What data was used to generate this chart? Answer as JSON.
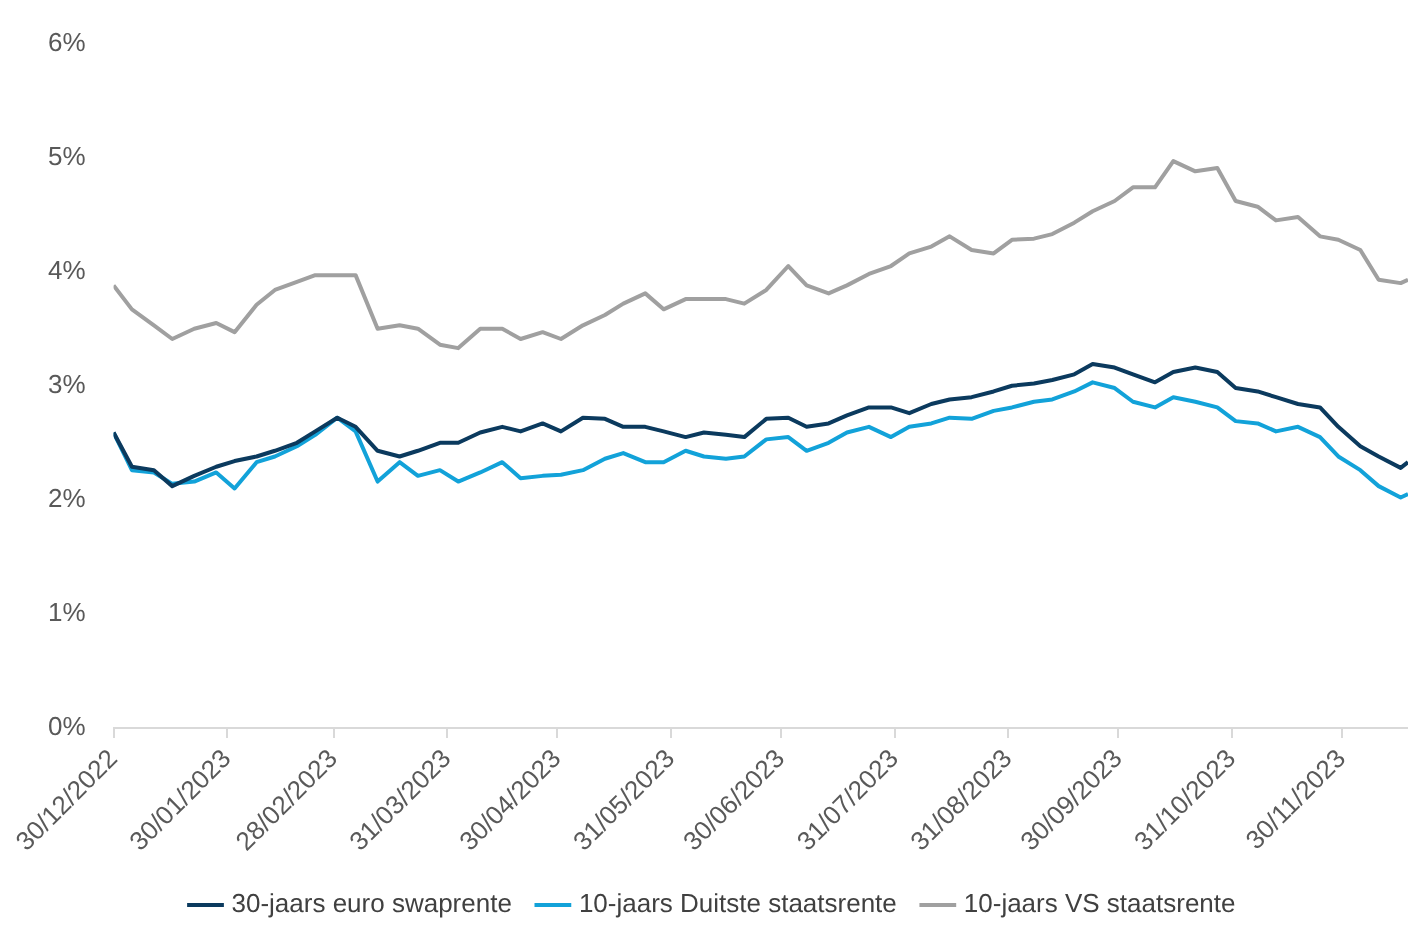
{
  "chart_data": {
    "type": "line",
    "x": [
      "2022-12-30",
      "2023-01-04",
      "2023-01-10",
      "2023-01-15",
      "2023-01-21",
      "2023-01-27",
      "2023-02-01",
      "2023-02-07",
      "2023-02-12",
      "2023-02-18",
      "2023-02-23",
      "2023-03-01",
      "2023-03-06",
      "2023-03-12",
      "2023-03-18",
      "2023-03-23",
      "2023-03-29",
      "2023-04-03",
      "2023-04-09",
      "2023-04-15",
      "2023-04-20",
      "2023-04-26",
      "2023-05-01",
      "2023-05-07",
      "2023-05-13",
      "2023-05-18",
      "2023-05-24",
      "2023-05-29",
      "2023-06-04",
      "2023-06-09",
      "2023-06-15",
      "2023-06-20",
      "2023-06-26",
      "2023-07-02",
      "2023-07-07",
      "2023-07-13",
      "2023-07-18",
      "2023-07-24",
      "2023-07-30",
      "2023-08-04",
      "2023-08-10",
      "2023-08-15",
      "2023-08-21",
      "2023-08-27",
      "2023-09-01",
      "2023-09-07",
      "2023-09-12",
      "2023-09-18",
      "2023-09-23",
      "2023-09-29",
      "2023-10-04",
      "2023-10-10",
      "2023-10-15",
      "2023-10-21",
      "2023-10-27",
      "2023-11-01",
      "2023-11-07",
      "2023-11-12",
      "2023-11-18",
      "2023-11-24",
      "2023-11-29",
      "2023-12-05",
      "2023-12-10",
      "2023-12-16",
      "2023-12-18"
    ],
    "series": [
      {
        "name": "30-jaars euro swaprente",
        "color": "#0b3a5e",
        "values": [
          2.59,
          2.29,
          2.26,
          2.12,
          2.21,
          2.29,
          2.34,
          2.38,
          2.43,
          2.5,
          2.6,
          2.72,
          2.64,
          2.43,
          2.38,
          2.43,
          2.5,
          2.5,
          2.59,
          2.64,
          2.6,
          2.67,
          2.6,
          2.72,
          2.71,
          2.64,
          2.64,
          2.6,
          2.55,
          2.59,
          2.57,
          2.55,
          2.71,
          2.72,
          2.64,
          2.67,
          2.74,
          2.81,
          2.81,
          2.76,
          2.84,
          2.88,
          2.9,
          2.95,
          3.0,
          3.02,
          3.05,
          3.1,
          3.19,
          3.16,
          3.1,
          3.03,
          3.12,
          3.16,
          3.12,
          2.98,
          2.95,
          2.9,
          2.84,
          2.81,
          2.64,
          2.47,
          2.38,
          2.28,
          2.33
        ]
      },
      {
        "name": "10-jaars Duitste staatsrente",
        "color": "#12a2d9",
        "values": [
          2.59,
          2.26,
          2.24,
          2.14,
          2.16,
          2.24,
          2.1,
          2.33,
          2.38,
          2.47,
          2.57,
          2.72,
          2.6,
          2.16,
          2.33,
          2.21,
          2.26,
          2.16,
          2.24,
          2.33,
          2.19,
          2.21,
          2.22,
          2.26,
          2.36,
          2.41,
          2.33,
          2.33,
          2.43,
          2.38,
          2.36,
          2.38,
          2.53,
          2.55,
          2.43,
          2.5,
          2.59,
          2.64,
          2.55,
          2.64,
          2.67,
          2.72,
          2.71,
          2.78,
          2.81,
          2.86,
          2.88,
          2.95,
          3.03,
          2.98,
          2.86,
          2.81,
          2.9,
          2.86,
          2.81,
          2.69,
          2.67,
          2.6,
          2.64,
          2.55,
          2.38,
          2.26,
          2.12,
          2.02,
          2.05
        ]
      },
      {
        "name": "10-jaars VS staatsrente",
        "color": "#a0a0a0",
        "values": [
          3.88,
          3.67,
          3.53,
          3.41,
          3.5,
          3.55,
          3.47,
          3.71,
          3.84,
          3.91,
          3.97,
          3.97,
          3.97,
          3.5,
          3.53,
          3.5,
          3.36,
          3.33,
          3.5,
          3.5,
          3.41,
          3.47,
          3.41,
          3.53,
          3.62,
          3.72,
          3.81,
          3.67,
          3.76,
          3.76,
          3.76,
          3.72,
          3.84,
          4.05,
          3.88,
          3.81,
          3.88,
          3.98,
          4.05,
          4.16,
          4.22,
          4.31,
          4.19,
          4.16,
          4.28,
          4.29,
          4.33,
          4.43,
          4.53,
          4.62,
          4.74,
          4.74,
          4.97,
          4.88,
          4.91,
          4.62,
          4.57,
          4.45,
          4.48,
          4.31,
          4.28,
          4.19,
          3.93,
          3.9,
          3.93
        ]
      }
    ],
    "xlim": [
      "2022-12-30",
      "2023-12-18"
    ],
    "xticks": [
      {
        "value": "2022-12-30",
        "label": "30/12/2022"
      },
      {
        "value": "2023-01-30",
        "label": "30/01/2023"
      },
      {
        "value": "2023-02-28",
        "label": "28/02/2023"
      },
      {
        "value": "2023-03-31",
        "label": "31/03/2023"
      },
      {
        "value": "2023-04-30",
        "label": "30/04/2023"
      },
      {
        "value": "2023-05-31",
        "label": "31/05/2023"
      },
      {
        "value": "2023-06-30",
        "label": "30/06/2023"
      },
      {
        "value": "2023-07-31",
        "label": "31/07/2023"
      },
      {
        "value": "2023-08-31",
        "label": "31/08/2023"
      },
      {
        "value": "2023-09-30",
        "label": "30/09/2023"
      },
      {
        "value": "2023-10-31",
        "label": "31/10/2023"
      },
      {
        "value": "2023-11-30",
        "label": "30/11/2023"
      }
    ],
    "ylim": [
      0,
      6
    ],
    "yticks": [
      {
        "value": 0,
        "label": "0%"
      },
      {
        "value": 1,
        "label": "1%"
      },
      {
        "value": 2,
        "label": "2%"
      },
      {
        "value": 3,
        "label": "3%"
      },
      {
        "value": 4,
        "label": "4%"
      },
      {
        "value": 5,
        "label": "5%"
      },
      {
        "value": 6,
        "label": "6%"
      }
    ],
    "legend": "bottom",
    "marker": "none",
    "line_style": "solid"
  }
}
